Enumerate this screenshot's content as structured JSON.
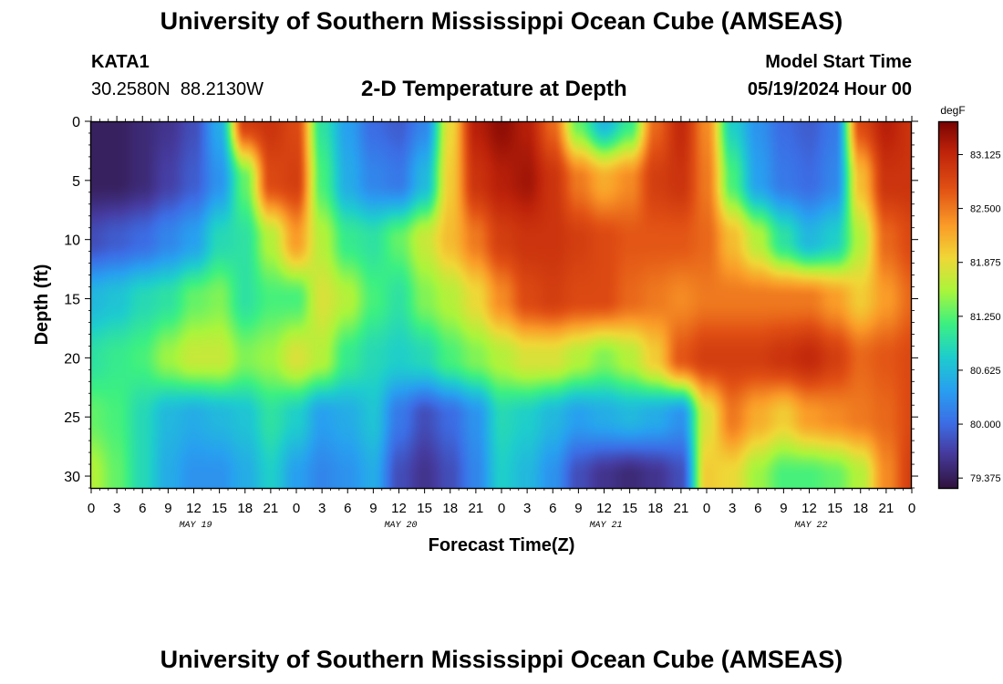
{
  "header": {
    "title": "University of Southern Mississippi Ocean Cube (AMSEAS)",
    "station_id": "KATA1",
    "station_coords": "30.2580N  88.2130W",
    "subtitle": "2-D Temperature at Depth",
    "model_start_label": "Model Start Time",
    "model_start_value": "05/19/2024 Hour 00"
  },
  "footer": {
    "title_repeat": "University of Southern Mississippi Ocean Cube (AMSEAS)"
  },
  "chart_data": {
    "type": "heatmap",
    "title": "2-D Temperature at Depth",
    "xlabel": "Forecast Time(Z)",
    "ylabel": "Depth (ft)",
    "x_unit": "forecast hour from 05/19/2024 00Z",
    "xlim": [
      0,
      96
    ],
    "ylim": [
      0,
      31
    ],
    "x_tick_values": [
      0,
      3,
      6,
      9,
      12,
      15,
      18,
      21,
      24,
      27,
      30,
      33,
      36,
      39,
      42,
      45,
      48,
      51,
      54,
      57,
      60,
      63,
      66,
      69,
      72,
      75,
      78,
      81,
      84,
      87,
      90,
      93,
      96
    ],
    "x_tick_labels": [
      "0",
      "3",
      "6",
      "9",
      "12",
      "15",
      "18",
      "21",
      "0",
      "3",
      "6",
      "9",
      "12",
      "15",
      "18",
      "21",
      "0",
      "3",
      "6",
      "9",
      "12",
      "15",
      "18",
      "21",
      "0",
      "3",
      "6",
      "9",
      "12",
      "15",
      "18",
      "21",
      "0"
    ],
    "date_labels": [
      {
        "text": "MAY 19",
        "hour": 12
      },
      {
        "text": "MAY 20",
        "hour": 36
      },
      {
        "text": "MAY 21",
        "hour": 60
      },
      {
        "text": "MAY 22",
        "hour": 84
      }
    ],
    "y_ticks": [
      0,
      5,
      10,
      15,
      20,
      25,
      30
    ],
    "colorbar": {
      "unit": "degF",
      "range": [
        79.25,
        83.5
      ],
      "ticks": [
        83.125,
        82.5,
        81.875,
        81.25,
        80.625,
        80.0,
        79.375
      ],
      "tick_labels": [
        "83.125",
        "82.500",
        "81.875",
        "81.250",
        "80.625",
        "80.000",
        "79.375"
      ]
    },
    "depths": [
      0,
      5,
      10,
      15,
      20,
      25,
      30
    ],
    "times": [
      0,
      3,
      6,
      9,
      12,
      15,
      18,
      21,
      24,
      27,
      30,
      33,
      36,
      39,
      42,
      45,
      48,
      51,
      54,
      57,
      60,
      63,
      66,
      69,
      72,
      75,
      78,
      81,
      84,
      87,
      90,
      93,
      96
    ],
    "values": [
      [
        79.4,
        79.4,
        79.5,
        79.6,
        79.8,
        80.5,
        82.9,
        83.0,
        82.8,
        81.0,
        80.4,
        80.0,
        79.9,
        80.2,
        81.9,
        83.2,
        83.4,
        83.2,
        82.6,
        81.3,
        80.6,
        81.1,
        82.6,
        83.1,
        82.4,
        80.8,
        80.3,
        80.0,
        79.9,
        80.1,
        82.8,
        83.2,
        83.0
      ],
      [
        79.4,
        79.4,
        79.5,
        79.7,
        79.9,
        80.3,
        81.3,
        82.8,
        82.9,
        81.2,
        80.5,
        80.2,
        80.1,
        80.6,
        82.0,
        83.0,
        83.2,
        83.3,
        83.0,
        82.5,
        82.2,
        82.4,
        82.9,
        83.0,
        82.5,
        81.2,
        80.4,
        80.1,
        80.0,
        80.2,
        82.1,
        83.0,
        83.0
      ],
      [
        79.8,
        79.9,
        80.0,
        80.2,
        80.4,
        80.9,
        81.0,
        81.6,
        82.3,
        81.6,
        81.1,
        81.0,
        81.3,
        81.7,
        82.1,
        82.5,
        82.9,
        83.0,
        83.0,
        82.9,
        82.8,
        82.7,
        82.7,
        82.7,
        82.6,
        82.1,
        81.6,
        81.0,
        80.6,
        80.8,
        81.6,
        82.6,
        82.8
      ],
      [
        80.6,
        80.7,
        80.9,
        81.0,
        81.3,
        81.4,
        81.0,
        81.2,
        81.2,
        81.8,
        81.6,
        81.2,
        81.0,
        81.4,
        81.6,
        81.9,
        82.4,
        82.8,
        82.9,
        82.8,
        82.8,
        82.6,
        82.5,
        82.4,
        82.5,
        82.5,
        82.5,
        82.5,
        82.5,
        82.3,
        82.0,
        82.3,
        82.6
      ],
      [
        81.0,
        81.1,
        81.2,
        81.5,
        81.7,
        81.7,
        81.4,
        81.5,
        81.8,
        81.6,
        81.1,
        80.9,
        80.8,
        80.9,
        81.2,
        81.4,
        81.6,
        81.8,
        81.8,
        81.6,
        81.4,
        81.6,
        82.0,
        82.7,
        82.9,
        82.9,
        82.9,
        83.0,
        83.1,
        82.9,
        82.6,
        82.7,
        82.8
      ],
      [
        81.3,
        81.2,
        80.9,
        80.6,
        80.5,
        80.6,
        80.7,
        81.0,
        80.8,
        80.4,
        80.5,
        80.7,
        80.1,
        79.8,
        80.0,
        80.3,
        80.9,
        80.8,
        80.6,
        80.4,
        80.5,
        80.6,
        80.5,
        80.3,
        81.8,
        82.5,
        82.2,
        82.0,
        82.3,
        82.4,
        82.5,
        82.6,
        82.8
      ],
      [
        81.6,
        81.3,
        80.9,
        80.5,
        80.3,
        80.3,
        80.5,
        80.8,
        80.4,
        80.2,
        80.3,
        80.5,
        79.8,
        79.6,
        79.8,
        80.2,
        80.8,
        80.6,
        80.3,
        79.8,
        79.6,
        79.5,
        79.6,
        79.8,
        82.0,
        81.9,
        81.5,
        81.2,
        81.2,
        81.3,
        81.6,
        82.4,
        82.9
      ]
    ]
  }
}
